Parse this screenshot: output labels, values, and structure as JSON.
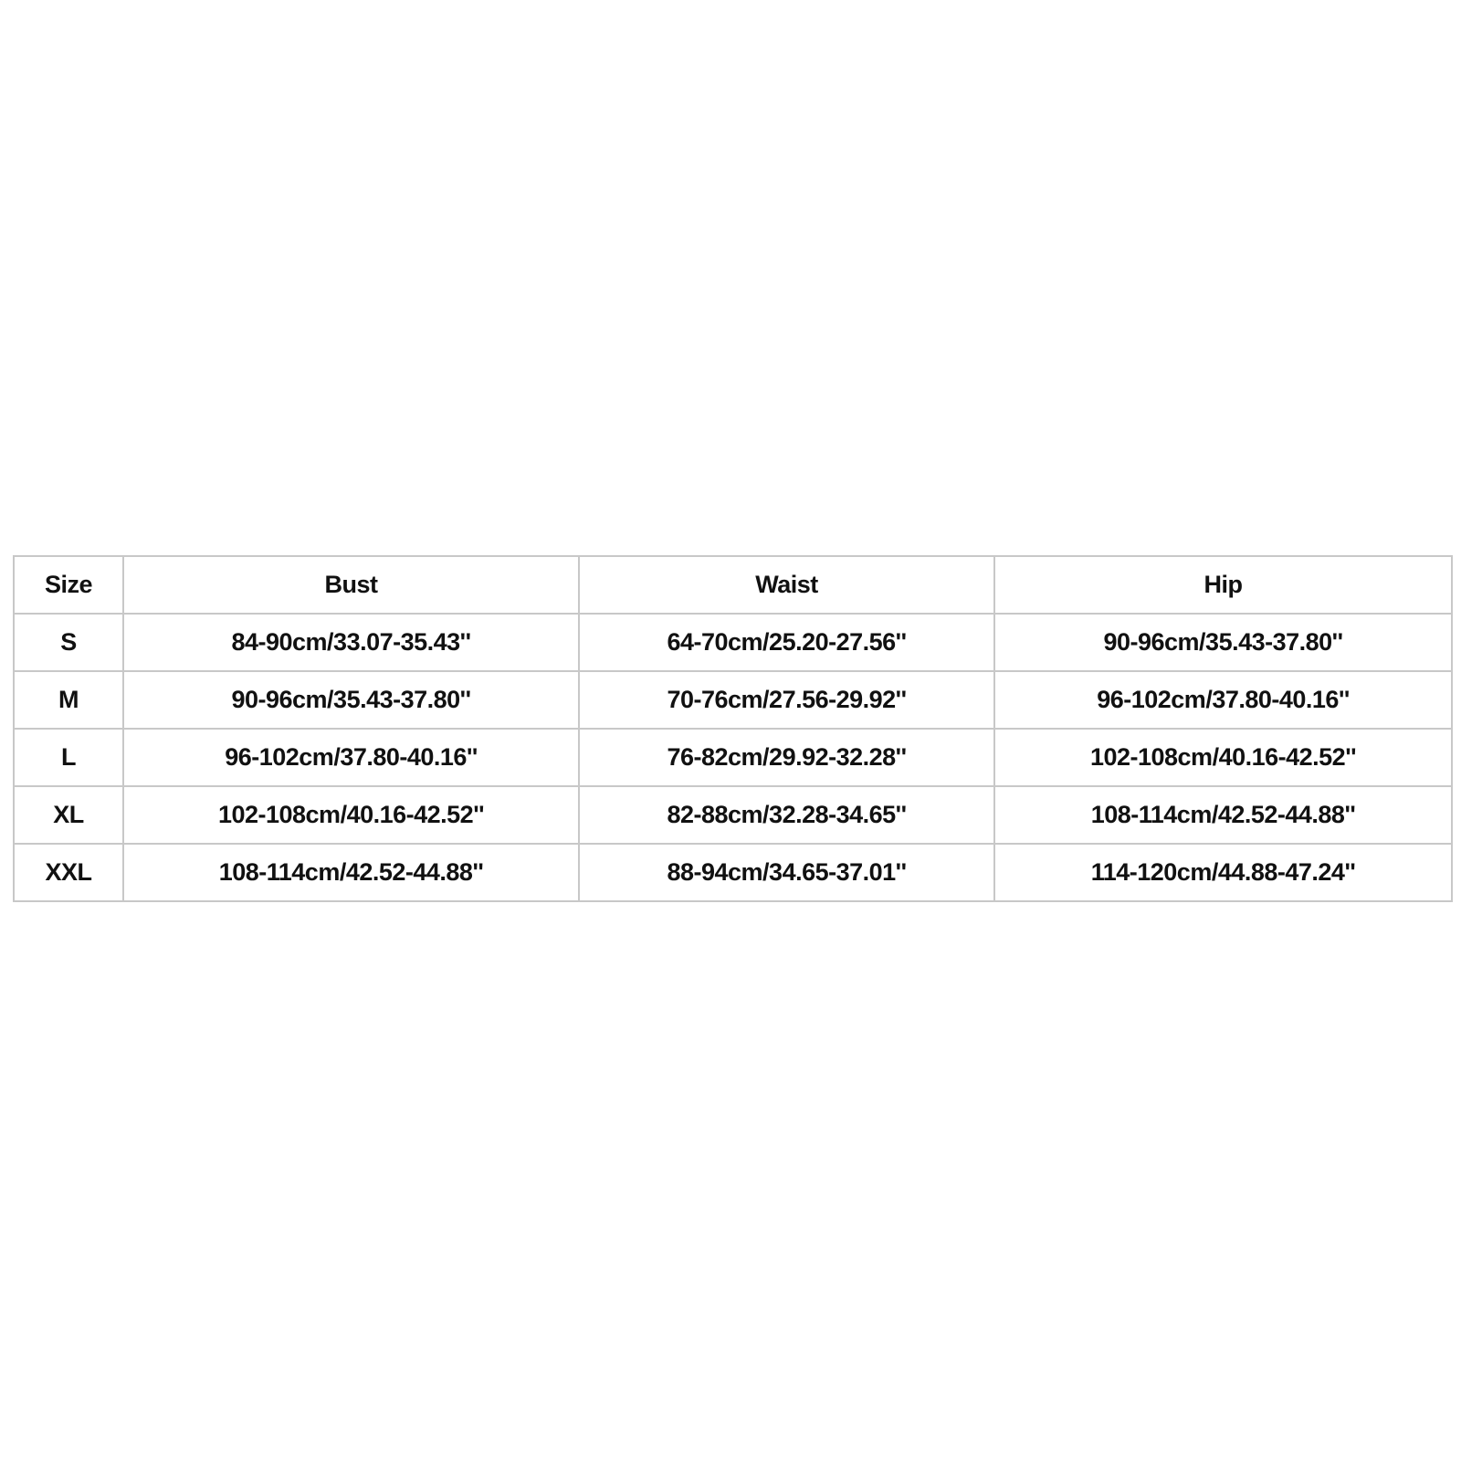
{
  "table": {
    "headers": [
      "Size",
      "Bust",
      "Waist",
      "Hip"
    ],
    "rows": [
      [
        "S",
        "84-90cm/33.07-35.43''",
        "64-70cm/25.20-27.56''",
        "90-96cm/35.43-37.80''"
      ],
      [
        "M",
        "90-96cm/35.43-37.80''",
        "70-76cm/27.56-29.92''",
        "96-102cm/37.80-40.16''"
      ],
      [
        "L",
        "96-102cm/37.80-40.16''",
        "76-82cm/29.92-32.28''",
        "102-108cm/40.16-42.52''"
      ],
      [
        "XL",
        "102-108cm/40.16-42.52''",
        "82-88cm/32.28-34.65''",
        "108-114cm/42.52-44.88''"
      ],
      [
        "XXL",
        "108-114cm/42.52-44.88''",
        "88-94cm/34.65-37.01''",
        "114-120cm/44.88-47.24''"
      ]
    ]
  }
}
